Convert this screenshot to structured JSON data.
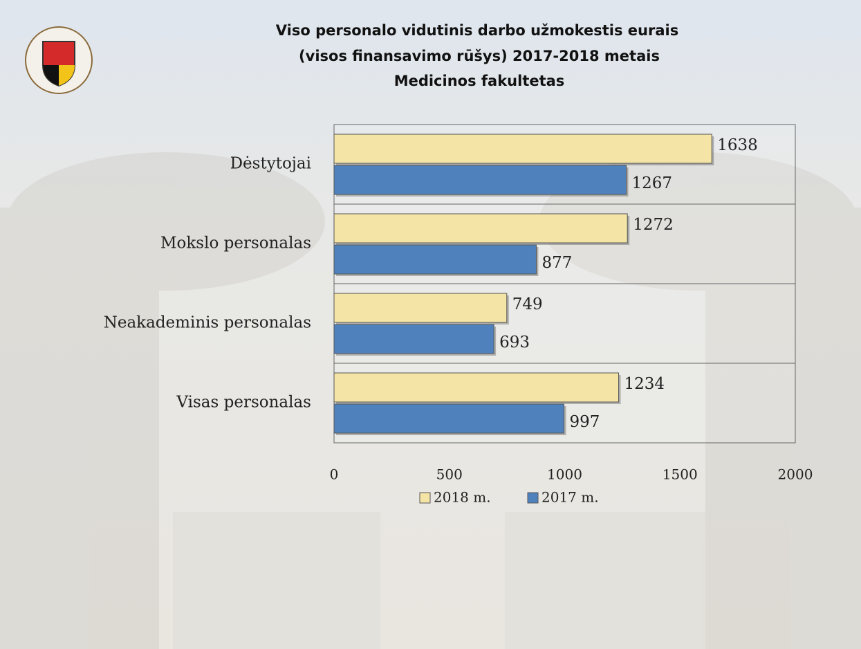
{
  "chart_data": {
    "type": "bar",
    "orientation": "horizontal",
    "title": [
      "Viso personalo vidutinis darbo užmokestis eurais",
      "(visos finansavimo rūšys) 2017-2018   metais",
      "Medicinos fakultetas"
    ],
    "categories": [
      "Dėstytojai",
      "Mokslo personalas",
      "Neakademinis personalas",
      "Visas personalas"
    ],
    "series": [
      {
        "name": "2018 m.",
        "color": "#f4e4a6",
        "values": [
          1638,
          1272,
          749,
          1234
        ]
      },
      {
        "name": "2017 m.",
        "color": "#4f81bd",
        "values": [
          1267,
          877,
          693,
          997
        ]
      }
    ],
    "xlim": [
      0,
      2000
    ],
    "xticks": [
      0,
      500,
      1000,
      1500,
      2000
    ],
    "legend": "bottom"
  }
}
